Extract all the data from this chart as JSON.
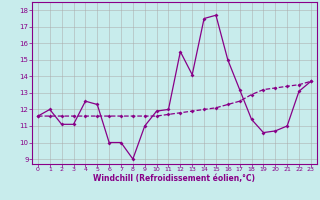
{
  "title": "",
  "xlabel": "Windchill (Refroidissement éolien,°C)",
  "xlim": [
    -0.5,
    23.5
  ],
  "ylim": [
    8.7,
    18.5
  ],
  "yticks": [
    9,
    10,
    11,
    12,
    13,
    14,
    15,
    16,
    17,
    18
  ],
  "xticks": [
    0,
    1,
    2,
    3,
    4,
    5,
    6,
    7,
    8,
    9,
    10,
    11,
    12,
    13,
    14,
    15,
    16,
    17,
    18,
    19,
    20,
    21,
    22,
    23
  ],
  "background_color": "#c8ecec",
  "grid_color": "#b0d8d8",
  "line_color": "#880088",
  "line1_x": [
    0,
    1,
    2,
    3,
    4,
    5,
    6,
    7,
    8,
    9,
    10,
    11,
    12,
    13,
    14,
    15,
    16,
    17,
    18,
    19,
    20,
    21,
    22,
    23
  ],
  "line1_y": [
    11.6,
    12.0,
    11.1,
    11.1,
    12.5,
    12.3,
    10.0,
    10.0,
    9.0,
    11.0,
    11.9,
    12.0,
    15.5,
    14.1,
    17.5,
    17.7,
    15.0,
    13.2,
    11.4,
    10.6,
    10.7,
    11.0,
    13.1,
    13.7
  ],
  "line2_x": [
    0,
    1,
    2,
    3,
    4,
    5,
    6,
    7,
    8,
    9,
    10,
    11,
    12,
    13,
    14,
    15,
    16,
    17,
    18,
    19,
    20,
    21,
    22,
    23
  ],
  "line2_y": [
    11.6,
    11.6,
    11.6,
    11.6,
    11.6,
    11.6,
    11.6,
    11.6,
    11.6,
    11.6,
    11.6,
    11.7,
    11.8,
    11.9,
    12.0,
    12.1,
    12.3,
    12.5,
    12.9,
    13.2,
    13.3,
    13.4,
    13.5,
    13.7
  ]
}
